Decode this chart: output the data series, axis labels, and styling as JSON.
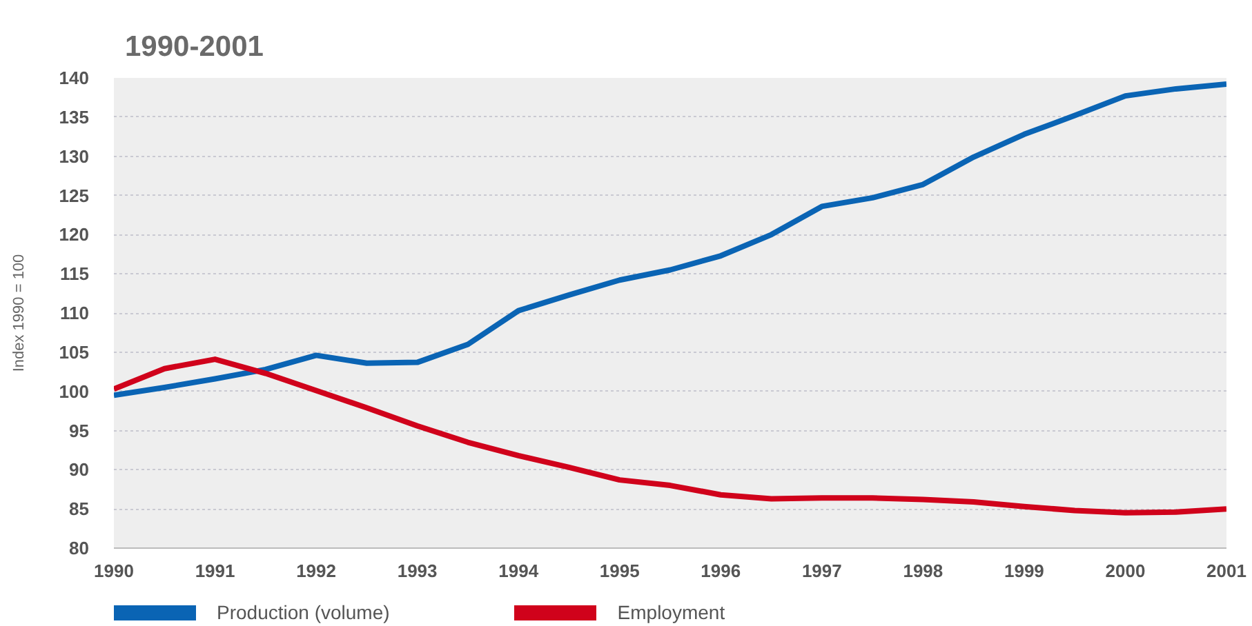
{
  "chart_data": {
    "type": "line",
    "title": "1990-2001",
    "ylabel": "Index 1990 = 100",
    "x": [
      1990,
      1990.5,
      1991,
      1991.5,
      1992,
      1992.5,
      1993,
      1993.5,
      1994,
      1994.5,
      1995,
      1995.5,
      1996,
      1996.5,
      1997,
      1997.5,
      1998,
      1998.5,
      1999,
      1999.5,
      2000,
      2000.5,
      2001
    ],
    "series": [
      {
        "name": "Production (volume)",
        "color": "#0a64b4",
        "values": [
          99.5,
          100.5,
          101.6,
          102.8,
          104.6,
          103.6,
          103.7,
          106.0,
          110.3,
          112.3,
          114.2,
          115.5,
          117.3,
          120.0,
          123.6,
          124.7,
          126.4,
          129.9,
          132.8,
          135.2,
          137.7,
          138.6,
          139.2
        ]
      },
      {
        "name": "Employment",
        "color": "#d0021b",
        "values": [
          100.3,
          102.9,
          104.1,
          102.3,
          100.1,
          97.9,
          95.6,
          93.5,
          91.8,
          90.3,
          88.7,
          88.0,
          86.8,
          86.3,
          86.4,
          86.4,
          86.2,
          85.9,
          85.3,
          84.8,
          84.5,
          84.6,
          85.0
        ]
      }
    ],
    "xlim": [
      1990,
      2001
    ],
    "xticks": [
      1990,
      1991,
      1992,
      1993,
      1994,
      1995,
      1996,
      1997,
      1998,
      1999,
      2000,
      2001
    ],
    "ylim": [
      80,
      140
    ],
    "yticks": [
      80,
      85,
      90,
      95,
      100,
      105,
      110,
      115,
      120,
      125,
      130,
      135,
      140
    ],
    "grid": "y",
    "legend": "bottom"
  }
}
